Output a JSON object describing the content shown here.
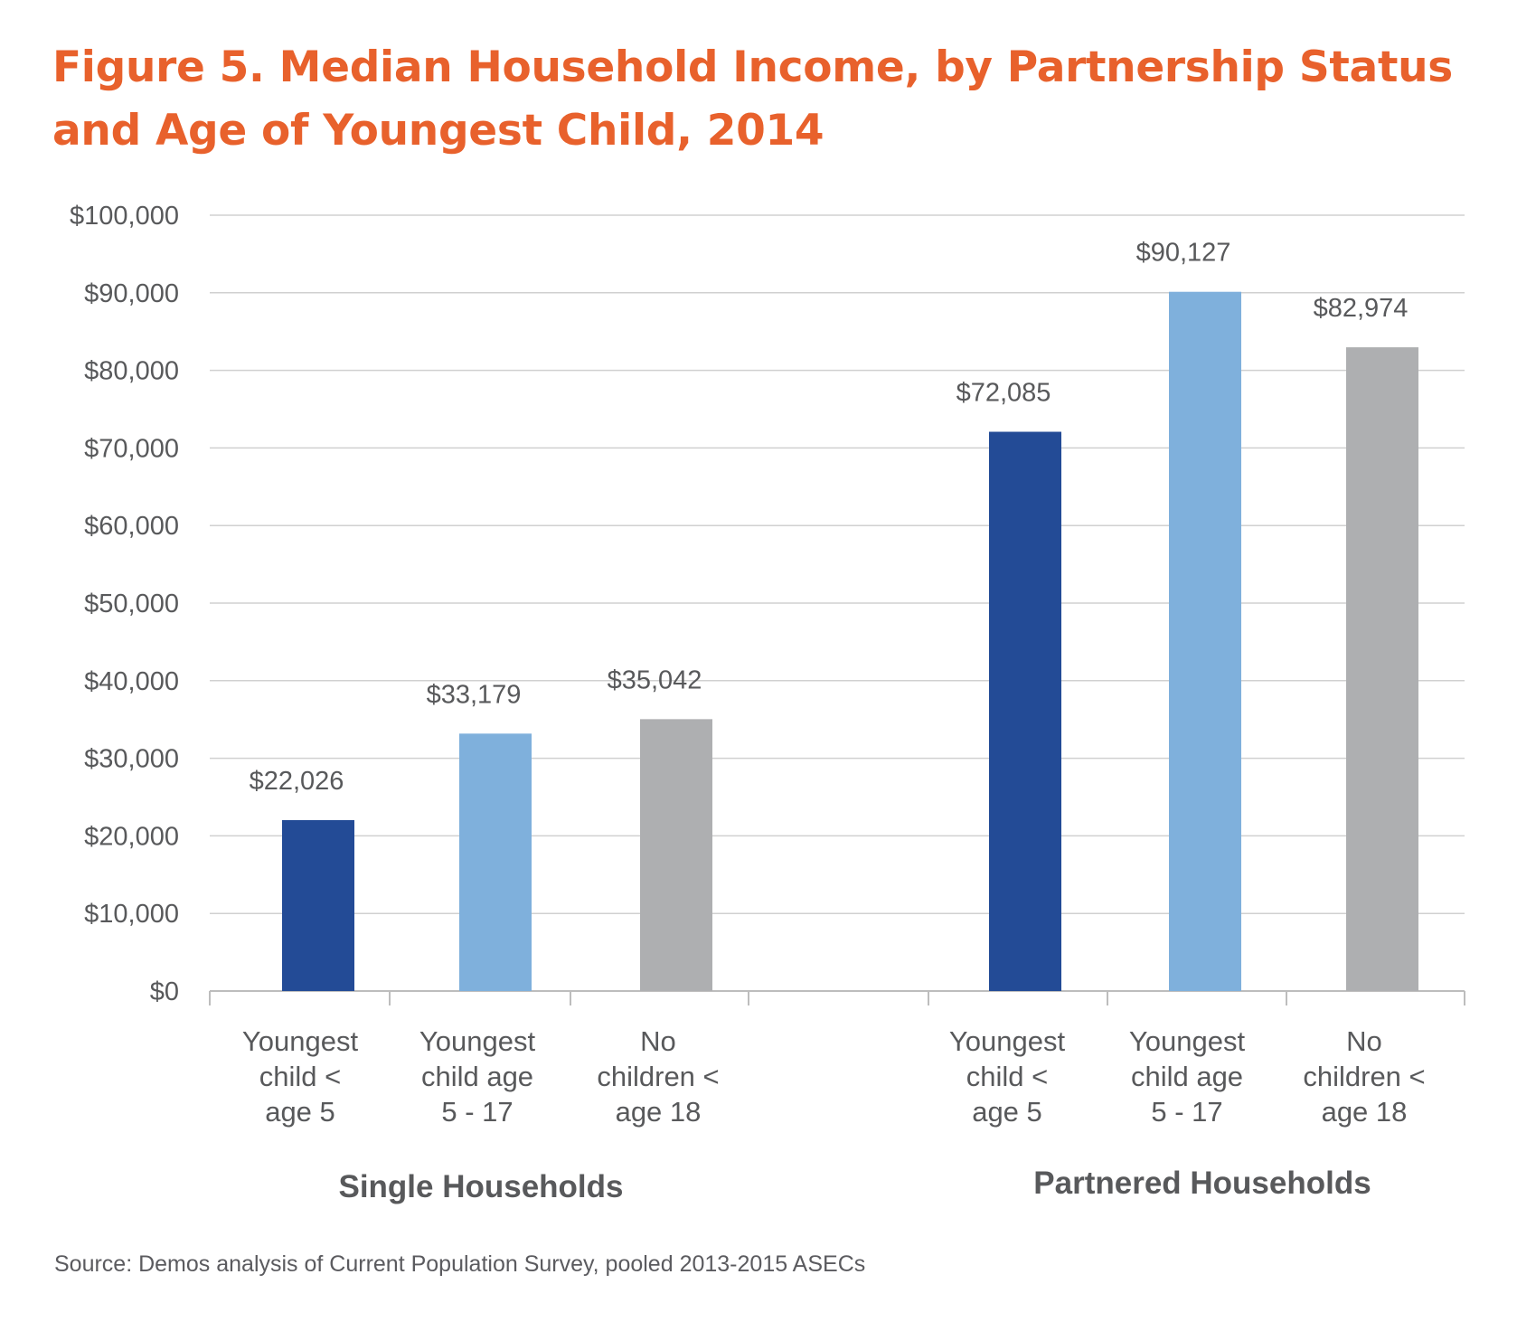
{
  "title": "Figure 5. Median Household Income, by Partnership Status and Age of Youngest Child, 2014",
  "source": "Source: Demos analysis of Current Population Survey, pooled 2013-2015 ASECs",
  "colors": {
    "title": "#e8612c",
    "text": "#58595b",
    "grid": "#d0d0d0",
    "axis": "#bdbdbd"
  },
  "chart_data": {
    "type": "bar",
    "ylim": [
      0,
      100000
    ],
    "yticks": [
      "$0",
      "$10,000",
      "$20,000",
      "$30,000",
      "$40,000",
      "$50,000",
      "$60,000",
      "$70,000",
      "$80,000",
      "$90,000",
      "$100,000"
    ],
    "grid": true,
    "groups": [
      {
        "name": "Single Households",
        "bars": [
          {
            "category": [
              "Youngest",
              "child <",
              "age 5"
            ],
            "value": 22026,
            "label": "$22,026",
            "color": "#234b96"
          },
          {
            "category": [
              "Youngest",
              "child age",
              "5 - 17"
            ],
            "value": 33179,
            "label": "$33,179",
            "color": "#7fb0dc"
          },
          {
            "category": [
              "No",
              "children <",
              "age 18"
            ],
            "value": 35042,
            "label": "$35,042",
            "color": "#aeafb1"
          }
        ]
      },
      {
        "name": "Partnered Households",
        "bars": [
          {
            "category": [
              "Youngest",
              "child <",
              "age 5"
            ],
            "value": 72085,
            "label": "$72,085",
            "color": "#234b96"
          },
          {
            "category": [
              "Youngest",
              "child age",
              "5 - 17"
            ],
            "value": 90127,
            "label": "$90,127",
            "color": "#7fb0dc"
          },
          {
            "category": [
              "No",
              "children <",
              "age 18"
            ],
            "value": 82974,
            "label": "$82,974",
            "color": "#aeafb1"
          }
        ]
      }
    ]
  }
}
